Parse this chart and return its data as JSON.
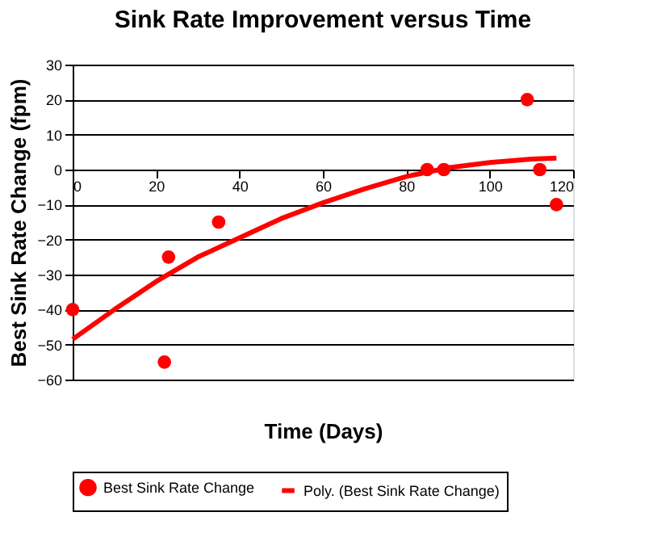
{
  "chart_data": {
    "type": "scatter",
    "title": "Sink Rate Improvement versus Time",
    "xlabel": "Time (Days)",
    "ylabel": "Best Sink Rate Change (fpm)",
    "xlim": [
      0,
      120
    ],
    "xticks": [
      0,
      20,
      40,
      60,
      80,
      100,
      120
    ],
    "ylim": [
      -60,
      30
    ],
    "yticks": [
      -60,
      -50,
      -40,
      -30,
      -20,
      -10,
      0,
      10,
      20,
      30
    ],
    "grid": "y",
    "legend": "bottom",
    "series": [
      {
        "name": "Best Sink Rate Change",
        "marker": "circle",
        "color": "#ff0000",
        "x": [
          0,
          22,
          23,
          35,
          85,
          89,
          109,
          112,
          116
        ],
        "values": [
          -40,
          -55,
          -25,
          -15,
          0,
          0,
          20,
          0,
          -10
        ]
      },
      {
        "name": "Poly. (Best Sink Rate Change)",
        "type": "line",
        "marker": "none",
        "color": "#ff0000",
        "line_style": "solid",
        "x": [
          0,
          10,
          20,
          30,
          40,
          50,
          60,
          70,
          80,
          90,
          100,
          110,
          116
        ],
        "values": [
          -48.5,
          -40,
          -32,
          -25,
          -19.5,
          -14,
          -9.5,
          -5.5,
          -2,
          0.5,
          2,
          3,
          3.3
        ]
      }
    ]
  }
}
